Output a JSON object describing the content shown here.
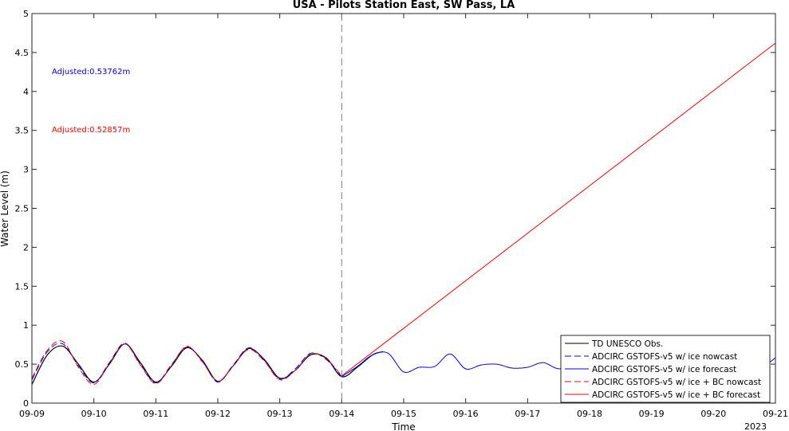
{
  "chart_data": {
    "type": "line",
    "title": "USA - Pilots Station East, SW Pass, LA",
    "xlabel": "Time",
    "ylabel": "Water Level (m)",
    "x_ticks": [
      "09-09",
      "09-10",
      "09-11",
      "09-12",
      "09-13",
      "09-14",
      "09-15",
      "09-16",
      "09-17",
      "09-18",
      "09-19",
      "09-20",
      "09-21"
    ],
    "x_year_label": "2023",
    "x_range": [
      "2023-09-09",
      "2023-09-21"
    ],
    "y_ticks": [
      "0",
      "0.5",
      "1",
      "1.5",
      "2",
      "2.5",
      "3",
      "3.5",
      "4",
      "4.5",
      "5"
    ],
    "ylim": [
      0,
      5
    ],
    "grid": false,
    "nowcast_end": "2023-09-14",
    "annotations": [
      {
        "text": "Adjusted:0.53762m",
        "color": "#0000ff"
      },
      {
        "text": "Adjusted:0.52857m",
        "color": "#ff0000"
      }
    ],
    "legend_position": "bottom-right",
    "series": [
      {
        "name": "TD UNESCO Obs.",
        "color": "#000000",
        "style": "solid",
        "x": [
          "09-09 00:00",
          "09-09 06:00",
          "09-09 12:00",
          "09-09 18:00",
          "09-10 00:00",
          "09-10 06:00",
          "09-10 12:00",
          "09-10 18:00",
          "09-11 00:00",
          "09-11 06:00",
          "09-11 12:00",
          "09-11 18:00",
          "09-12 00:00",
          "09-12 06:00",
          "09-12 12:00",
          "09-12 18:00",
          "09-13 00:00",
          "09-13 06:00",
          "09-13 12:00",
          "09-13 18:00",
          "09-14 00:00",
          "09-14 06:00",
          "09-14 12:00",
          "09-14 16:00"
        ],
        "y": [
          0.24,
          0.62,
          0.73,
          0.5,
          0.27,
          0.5,
          0.76,
          0.52,
          0.27,
          0.47,
          0.71,
          0.55,
          0.28,
          0.48,
          0.7,
          0.56,
          0.32,
          0.42,
          0.62,
          0.58,
          0.34,
          0.46,
          0.62,
          0.66
        ]
      },
      {
        "name": "ADCIRC GSTOFS-v5 w/ ice nowcast",
        "color": "#0000ff",
        "style": "dashed",
        "x": [
          "09-09 00:00",
          "09-09 06:00",
          "09-09 12:00",
          "09-09 18:00",
          "09-10 00:00",
          "09-10 06:00",
          "09-10 12:00",
          "09-10 18:00",
          "09-11 00:00",
          "09-11 06:00",
          "09-11 12:00",
          "09-11 18:00",
          "09-12 00:00",
          "09-12 06:00",
          "09-12 12:00",
          "09-12 18:00",
          "09-13 00:00",
          "09-13 06:00",
          "09-13 12:00",
          "09-13 18:00",
          "09-14 00:00"
        ],
        "y": [
          0.3,
          0.66,
          0.76,
          0.48,
          0.26,
          0.52,
          0.77,
          0.5,
          0.26,
          0.49,
          0.72,
          0.54,
          0.27,
          0.49,
          0.71,
          0.55,
          0.31,
          0.44,
          0.64,
          0.56,
          0.34
        ]
      },
      {
        "name": "ADCIRC GSTOFS-v5 w/ ice forecast",
        "color": "#0000ff",
        "style": "solid",
        "x": [
          "09-14 00:00",
          "09-14 06:00",
          "09-14 12:00",
          "09-14 18:00",
          "09-15 00:00",
          "09-15 06:00",
          "09-15 12:00",
          "09-15 18:00",
          "09-16 00:00",
          "09-16 06:00",
          "09-16 12:00",
          "09-16 18:00",
          "09-17 00:00",
          "09-17 06:00",
          "09-17 12:00",
          "09-17 18:00",
          "09-18 00:00",
          "09-18 06:00",
          "09-18 12:00",
          "09-18 18:00",
          "09-19 00:00",
          "09-19 06:00",
          "09-19 12:00",
          "09-19 18:00",
          "09-20 00:00",
          "09-20 06:00",
          "09-20 12:00",
          "09-20 18:00",
          "09-21 00:00"
        ],
        "y": [
          0.34,
          0.47,
          0.62,
          0.64,
          0.4,
          0.46,
          0.47,
          0.63,
          0.44,
          0.49,
          0.5,
          0.45,
          0.46,
          0.52,
          0.44,
          0.5,
          0.45,
          0.51,
          0.47,
          0.48,
          0.46,
          0.49,
          0.5,
          0.45,
          0.46,
          0.5,
          0.47,
          0.45,
          0.58
        ]
      },
      {
        "name": "ADCIRC GSTOFS-v5 w/ ice + BC nowcast",
        "color": "#ff0000",
        "style": "dashed",
        "x": [
          "09-09 00:00",
          "09-09 06:00",
          "09-09 12:00",
          "09-09 18:00",
          "09-10 00:00",
          "09-10 06:00",
          "09-10 12:00",
          "09-10 18:00",
          "09-11 00:00",
          "09-11 06:00",
          "09-11 12:00",
          "09-11 18:00",
          "09-12 00:00",
          "09-12 06:00",
          "09-12 12:00",
          "09-12 18:00",
          "09-13 00:00",
          "09-13 06:00",
          "09-13 12:00",
          "09-13 18:00",
          "09-14 00:00"
        ],
        "y": [
          0.32,
          0.68,
          0.79,
          0.46,
          0.24,
          0.51,
          0.76,
          0.49,
          0.25,
          0.48,
          0.73,
          0.53,
          0.28,
          0.48,
          0.69,
          0.54,
          0.3,
          0.42,
          0.63,
          0.57,
          0.35
        ]
      },
      {
        "name": "ADCIRC GSTOFS-v5 w/ ice + BC forecast",
        "color": "#ff0000",
        "style": "solid",
        "x": [
          "09-14 00:00",
          "09-21 00:00"
        ],
        "y": [
          0.35,
          4.62
        ]
      }
    ]
  }
}
